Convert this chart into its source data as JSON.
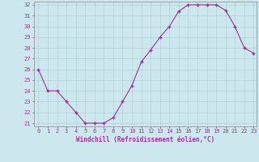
{
  "hours": [
    0,
    1,
    2,
    3,
    4,
    5,
    6,
    7,
    8,
    9,
    10,
    11,
    12,
    13,
    14,
    15,
    16,
    17,
    18,
    19,
    20,
    21,
    22,
    23
  ],
  "values": [
    26,
    24,
    24,
    23,
    22,
    21,
    21,
    21,
    21.5,
    23,
    24.5,
    26.7,
    27.8,
    29,
    30,
    31.4,
    32,
    32,
    32,
    32,
    31.5,
    30,
    28,
    27.5
  ],
  "line_color": "#993399",
  "marker_color": "#993399",
  "bg_color": "#cce8ee",
  "grid_color": "#aacccc",
  "xlabel": "Windchill (Refroidissement éolien,°C)",
  "ylim_min": 21,
  "ylim_max": 32,
  "xlim_min": 0,
  "xlim_max": 23,
  "yticks": [
    21,
    22,
    23,
    24,
    25,
    26,
    27,
    28,
    29,
    30,
    31,
    32
  ],
  "xticks": [
    0,
    1,
    2,
    3,
    4,
    5,
    6,
    7,
    8,
    9,
    10,
    11,
    12,
    13,
    14,
    15,
    16,
    17,
    18,
    19,
    20,
    21,
    22,
    23
  ],
  "tick_color": "#993399",
  "label_fontsize": 5.5,
  "tick_fontsize": 5.0,
  "spine_color": "#888888"
}
